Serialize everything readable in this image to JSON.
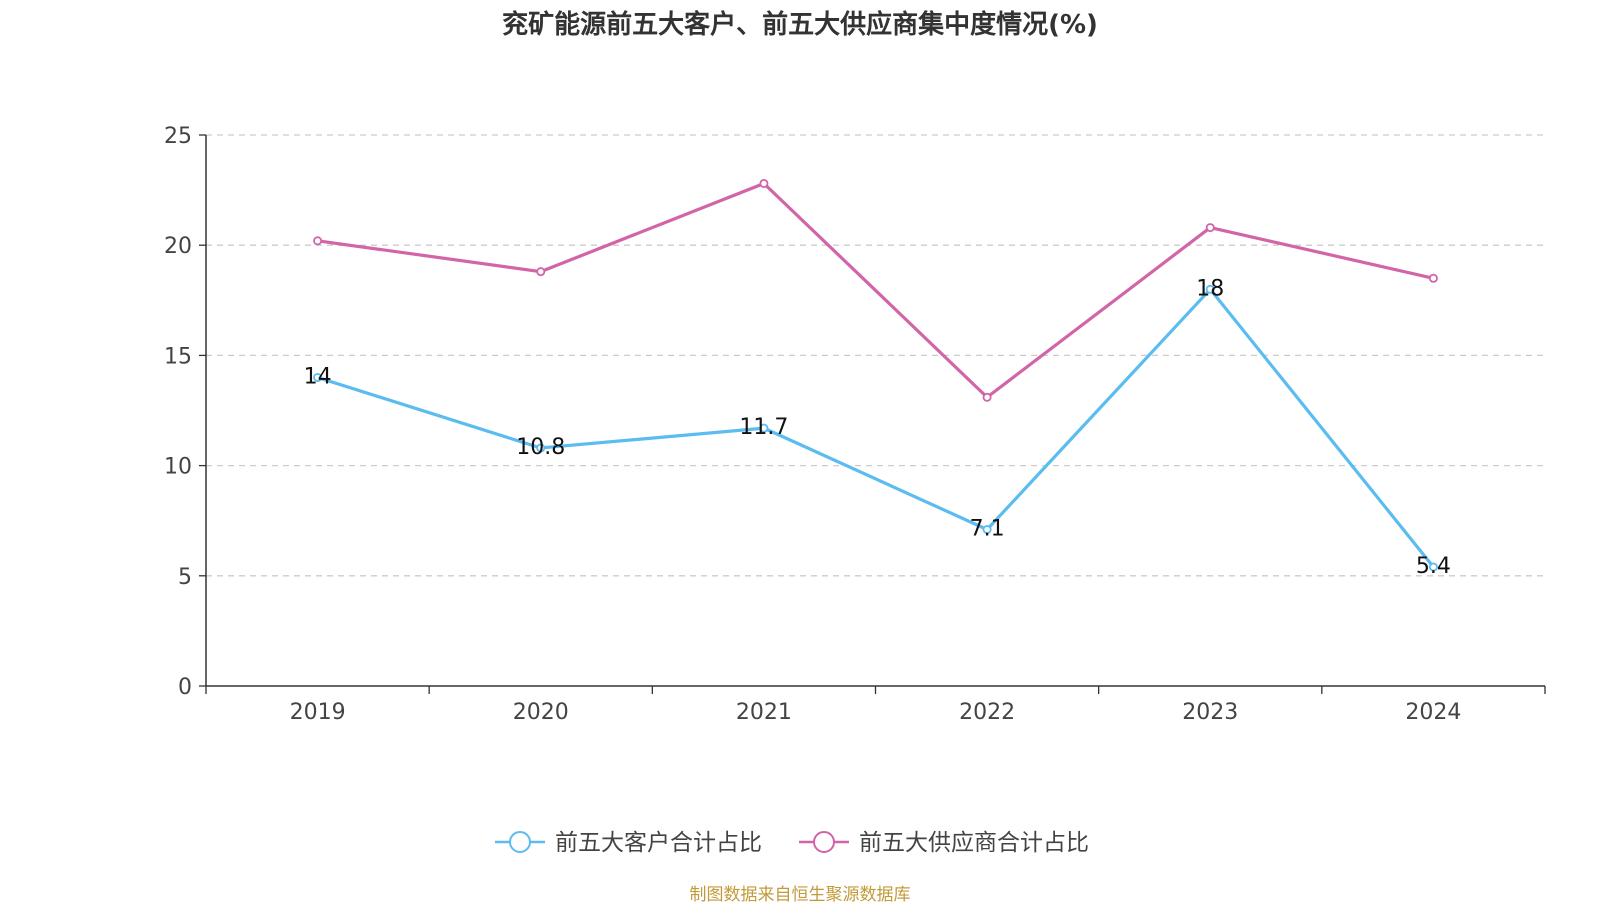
{
  "chart_data": {
    "type": "line",
    "title": "兖矿能源前五大客户、前五大供应商集中度情况(%)",
    "categories": [
      "2019",
      "2020",
      "2021",
      "2022",
      "2023",
      "2024"
    ],
    "series": [
      {
        "name": "前五大客户合计占比",
        "color": "#5bbcf0",
        "values": [
          14,
          10.8,
          11.7,
          7.1,
          18,
          5.4
        ],
        "show_labels": true
      },
      {
        "name": "前五大供应商合计占比",
        "color": "#d264a8",
        "values": [
          20.2,
          18.8,
          22.8,
          13.1,
          20.8,
          18.5
        ],
        "show_labels": false
      }
    ],
    "ylim": [
      0,
      25
    ],
    "yticks": [
      0,
      5,
      10,
      15,
      20,
      25
    ],
    "grid": true,
    "legend_position": "bottom-center"
  },
  "source_note": "制图数据来自恒生聚源数据库"
}
